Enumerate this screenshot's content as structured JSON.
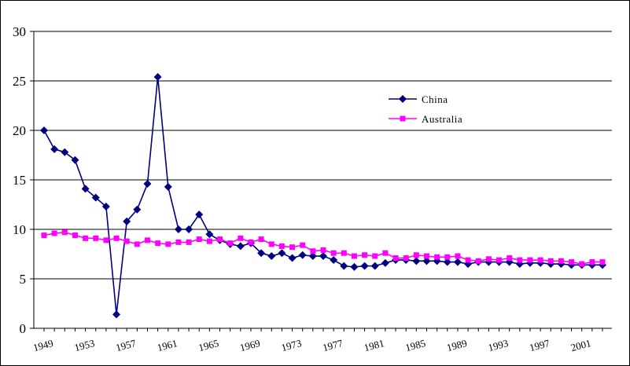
{
  "chart_data": {
    "type": "line",
    "title": "",
    "xlabel": "",
    "ylabel": "",
    "ylim": [
      0,
      30
    ],
    "y_ticks": [
      "0",
      "5",
      "10",
      "15",
      "20",
      "25",
      "30"
    ],
    "x_ticks": [
      "1949",
      "1953",
      "1957",
      "1961",
      "1965",
      "1969",
      "1973",
      "1977",
      "1981",
      "1985",
      "1989",
      "1993",
      "1997",
      "2001"
    ],
    "grid": "horizontal",
    "legend_position": "upper-right",
    "x": [
      1949,
      1950,
      1951,
      1952,
      1953,
      1954,
      1955,
      1956,
      1957,
      1958,
      1959,
      1960,
      1961,
      1962,
      1963,
      1964,
      1965,
      1966,
      1967,
      1968,
      1969,
      1970,
      1971,
      1972,
      1973,
      1974,
      1975,
      1976,
      1977,
      1978,
      1979,
      1980,
      1981,
      1982,
      1983,
      1984,
      1985,
      1986,
      1987,
      1988,
      1989,
      1990,
      1991,
      1992,
      1993,
      1994,
      1995,
      1996,
      1997,
      1998,
      1999,
      2000,
      2001,
      2002,
      2003
    ],
    "series": [
      {
        "name": "China",
        "color": "#000080",
        "marker": "diamond",
        "values": [
          20.0,
          18.1,
          17.8,
          17.0,
          14.1,
          13.2,
          12.3,
          1.4,
          10.8,
          12.0,
          14.6,
          25.4,
          14.3,
          10.0,
          10.0,
          11.5,
          9.5,
          8.9,
          8.5,
          8.3,
          8.6,
          7.6,
          7.3,
          7.6,
          7.1,
          7.4,
          7.3,
          7.3,
          6.9,
          6.3,
          6.2,
          6.3,
          6.3,
          6.6,
          6.9,
          6.9,
          6.8,
          6.8,
          6.8,
          6.7,
          6.7,
          6.5,
          6.7,
          6.7,
          6.7,
          6.7,
          6.5,
          6.6,
          6.6,
          6.5,
          6.5,
          6.4,
          6.4,
          6.4,
          6.4
        ]
      },
      {
        "name": "Australia",
        "color": "#FF00FF",
        "marker": "square",
        "values": [
          9.4,
          9.6,
          9.7,
          9.4,
          9.1,
          9.1,
          8.9,
          9.1,
          8.8,
          8.5,
          8.9,
          8.6,
          8.5,
          8.7,
          8.7,
          9.0,
          8.8,
          9.0,
          8.6,
          9.1,
          8.7,
          9.0,
          8.5,
          8.3,
          8.2,
          8.4,
          7.8,
          7.9,
          7.6,
          7.6,
          7.3,
          7.4,
          7.3,
          7.6,
          7.1,
          7.1,
          7.4,
          7.3,
          7.2,
          7.2,
          7.3,
          6.9,
          6.8,
          7.0,
          6.9,
          7.1,
          6.9,
          6.9,
          6.9,
          6.8,
          6.8,
          6.7,
          6.5,
          6.7,
          6.7
        ]
      }
    ]
  }
}
